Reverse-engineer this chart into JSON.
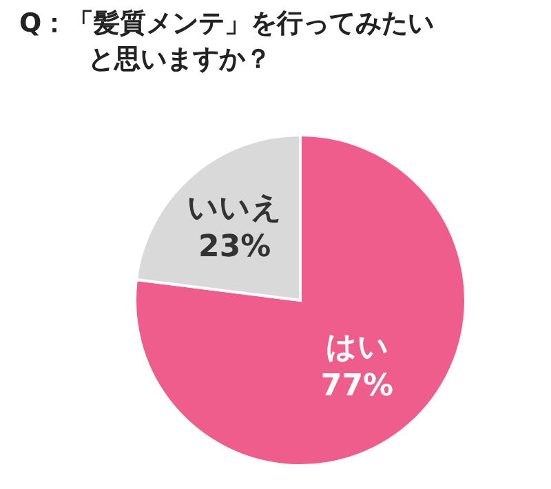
{
  "chart_data": {
    "type": "pie",
    "title": "Q：「髪質メンテ」を行ってみたいと思いますか？",
    "categories": [
      "はい",
      "いいえ"
    ],
    "values": [
      77,
      23
    ],
    "value_labels": [
      "77%",
      "23%"
    ],
    "colors": [
      "#ef5d8c",
      "#d9d9d9"
    ]
  }
}
